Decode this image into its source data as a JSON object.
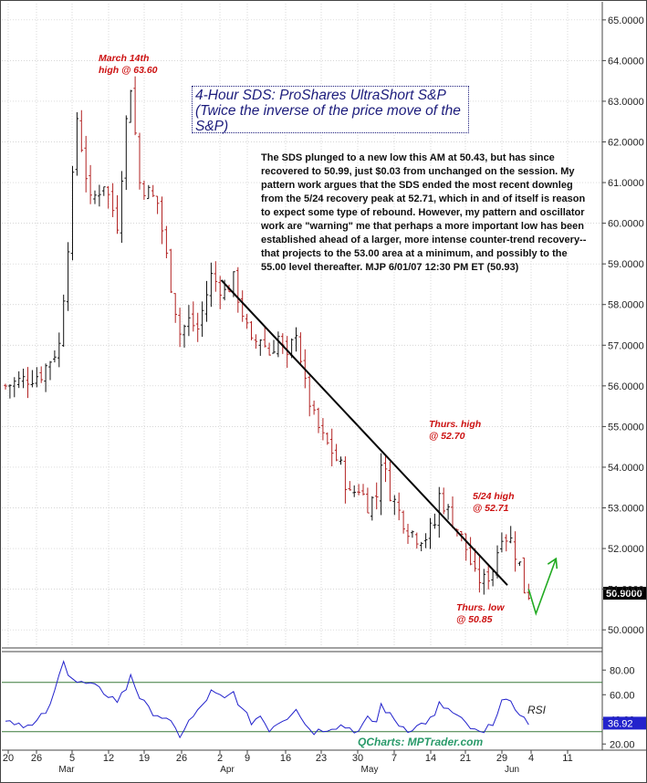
{
  "chart_data": {
    "type": "candlestick",
    "title": "4-Hour SDS: ProShares UltraShort S&P",
    "subtitle": "(Twice the inverse of the price move of the S&P)",
    "commentary": "The SDS plunged to a new low this AM at 50.43, but has since recovered to 50.99, just $0.03 from unchanged on the session. My pattern work argues that the SDS ended the most recent downleg from the 5/24 recovery peak at 52.71, which in and of itself is reason to expect some type of rebound. However, my pattern and oscillator work are \"warning\" me that perhaps a more important low has been established ahead of a larger, more intense counter-trend recovery-- that projects to the 53.00 area at a minimum, and possibly to the 55.00 level thereafter.   MJP 6/01/07  12:30 PM ET  (50.93)",
    "annotations": [
      {
        "text": "March 14th\nhigh @ 63.60",
        "value": 63.6
      },
      {
        "text": "Thurs. high\n@ 52.70",
        "value": 52.7
      },
      {
        "text": "5/24 high\n@ 52.71",
        "value": 52.71
      },
      {
        "text": "Thurs. low\n@ 50.85",
        "value": 50.85
      }
    ],
    "last_price_label": "50.9000",
    "y_ticks": [
      "65.0000",
      "64.0000",
      "63.0000",
      "62.0000",
      "61.0000",
      "60.0000",
      "59.0000",
      "58.0000",
      "57.0000",
      "56.0000",
      "55.0000",
      "54.0000",
      "53.0000",
      "52.0000",
      "51.0000",
      "50.0000"
    ],
    "ylim": [
      49.6,
      65.4
    ],
    "x_ticks": [
      "20",
      "26",
      "5",
      "12",
      "19",
      "26",
      "2",
      "9",
      "16",
      "23",
      "30",
      "7",
      "14",
      "21",
      "29",
      "4",
      "11"
    ],
    "month_labels": [
      "Mar",
      "Apr",
      "May",
      "Jun"
    ],
    "price_anchors": [
      [
        0,
        56.0
      ],
      [
        8,
        56.3
      ],
      [
        12,
        57.0
      ],
      [
        14,
        59.5
      ],
      [
        16,
        62.6
      ],
      [
        19,
        60.5
      ],
      [
        22,
        61.0
      ],
      [
        25,
        60.0
      ],
      [
        27,
        62.5
      ],
      [
        28,
        63.4
      ],
      [
        30,
        61.0
      ],
      [
        34,
        60.5
      ],
      [
        37,
        58.5
      ],
      [
        39,
        57.3
      ],
      [
        41,
        57.6
      ],
      [
        43,
        57.4
      ],
      [
        46,
        58.7
      ],
      [
        49,
        58.3
      ],
      [
        51,
        58.6
      ],
      [
        53,
        57.8
      ],
      [
        55,
        57.0
      ],
      [
        57,
        57.2
      ],
      [
        59,
        56.8
      ],
      [
        61,
        57.2
      ],
      [
        63,
        56.6
      ],
      [
        65,
        57.4
      ],
      [
        67,
        56.0
      ],
      [
        69,
        55.2
      ],
      [
        71,
        54.7
      ],
      [
        73,
        54.4
      ],
      [
        75,
        54.0
      ],
      [
        77,
        53.3
      ],
      [
        79,
        53.5
      ],
      [
        81,
        53.1
      ],
      [
        83,
        53.3
      ],
      [
        84,
        54.2
      ],
      [
        86,
        53.4
      ],
      [
        88,
        52.9
      ],
      [
        90,
        52.5
      ],
      [
        92,
        52.3
      ],
      [
        94,
        52.3
      ],
      [
        96,
        52.6
      ],
      [
        97,
        53.3
      ],
      [
        99,
        52.9
      ],
      [
        101,
        52.5
      ],
      [
        103,
        52.0
      ],
      [
        105,
        51.3
      ],
      [
        107,
        51.2
      ],
      [
        109,
        51.5
      ],
      [
        111,
        52.4
      ],
      [
        113,
        52.2
      ],
      [
        115,
        51.6
      ],
      [
        116,
        51.0
      ],
      [
        117,
        50.9
      ]
    ],
    "trendline": [
      [
        242.5,
        58.6
      ],
      [
        556,
        51.1
      ]
    ],
    "arrow": {
      "from": 50.4,
      "to": 51.75
    },
    "rsi": {
      "label": "RSI",
      "current_label": "36.92",
      "y_ticks": [
        "80.00",
        "60.00",
        "40.00",
        "20.00"
      ],
      "ylim": [
        15,
        95
      ],
      "levels": [
        70,
        30
      ],
      "anchors": [
        [
          0,
          40
        ],
        [
          6,
          34
        ],
        [
          10,
          50
        ],
        [
          12,
          75
        ],
        [
          13,
          90
        ],
        [
          14,
          78
        ],
        [
          16,
          70
        ],
        [
          19,
          68
        ],
        [
          22,
          62
        ],
        [
          25,
          55
        ],
        [
          27,
          65
        ],
        [
          28,
          77
        ],
        [
          30,
          58
        ],
        [
          32,
          48
        ],
        [
          35,
          42
        ],
        [
          37,
          36
        ],
        [
          39,
          27
        ],
        [
          41,
          38
        ],
        [
          43,
          46
        ],
        [
          46,
          62
        ],
        [
          49,
          56
        ],
        [
          51,
          62
        ],
        [
          53,
          47
        ],
        [
          55,
          38
        ],
        [
          57,
          43
        ],
        [
          59,
          32
        ],
        [
          61,
          38
        ],
        [
          63,
          42
        ],
        [
          65,
          50
        ],
        [
          67,
          36
        ],
        [
          69,
          30
        ],
        [
          71,
          32
        ],
        [
          73,
          34
        ],
        [
          75,
          35
        ],
        [
          77,
          33
        ],
        [
          79,
          30
        ],
        [
          81,
          40
        ],
        [
          83,
          38
        ],
        [
          84,
          52
        ],
        [
          86,
          43
        ],
        [
          88,
          36
        ],
        [
          90,
          32
        ],
        [
          92,
          34
        ],
        [
          94,
          38
        ],
        [
          96,
          42
        ],
        [
          97,
          52
        ],
        [
          99,
          48
        ],
        [
          101,
          42
        ],
        [
          103,
          36
        ],
        [
          105,
          30
        ],
        [
          107,
          28
        ],
        [
          109,
          38
        ],
        [
          111,
          55
        ],
        [
          113,
          52
        ],
        [
          115,
          46
        ],
        [
          116,
          40
        ],
        [
          117,
          37
        ]
      ]
    },
    "colors": {
      "up": "#111111",
      "down": "#b22222",
      "trend": "#000000",
      "arrow": "#22aa22",
      "rsi": "#2222cc",
      "level": "#3a7a3a",
      "grid": "#c8c8c8"
    }
  },
  "credit": "QCharts: MPTrader.com"
}
